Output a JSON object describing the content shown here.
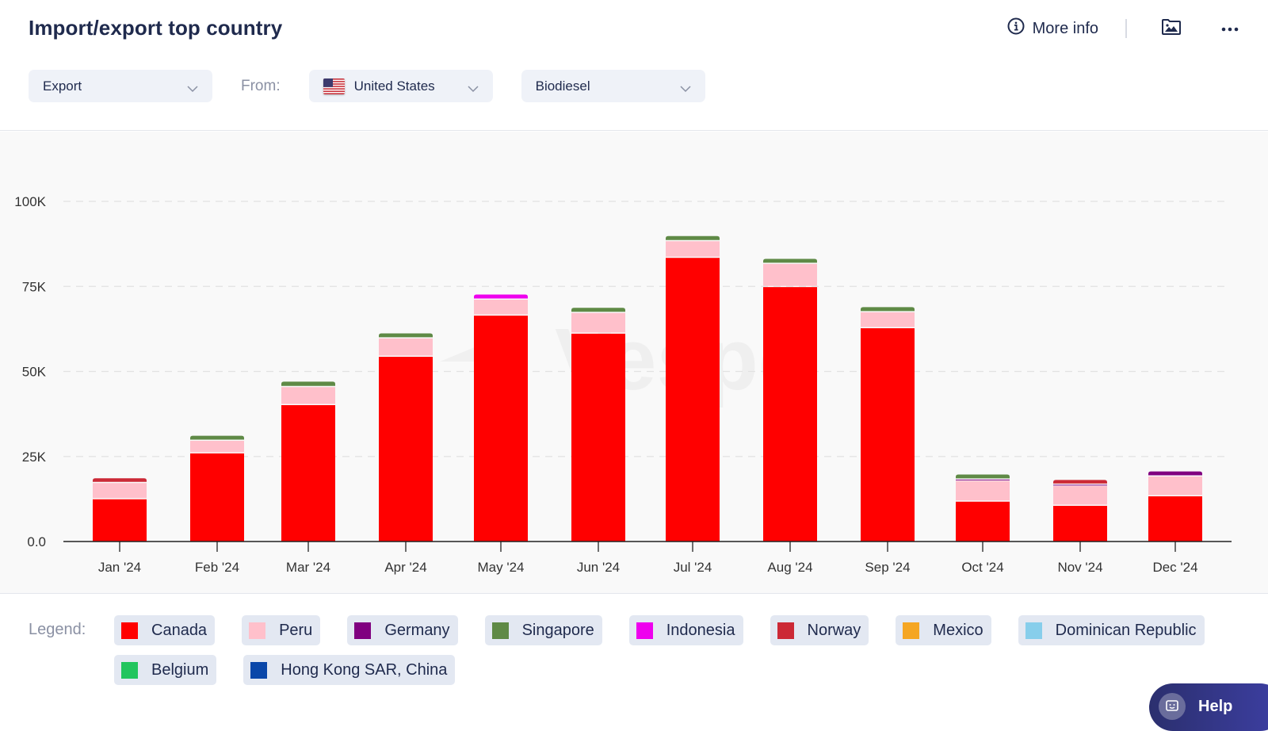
{
  "header": {
    "title": "Import/export top country",
    "more_info_label": "More info",
    "icons": {
      "info": "info-circle-icon",
      "image": "image-folder-icon",
      "more": "more-horizontal-icon"
    }
  },
  "filters": {
    "direction": "Export",
    "from_label": "From:",
    "country": "United States",
    "country_flag": "us-flag-icon",
    "product": "Biodiesel"
  },
  "legend": {
    "label": "Legend:",
    "items": [
      {
        "name": "Canada",
        "color": "#ff0000"
      },
      {
        "name": "Peru",
        "color": "#ffc0cb"
      },
      {
        "name": "Germany",
        "color": "#800080"
      },
      {
        "name": "Singapore",
        "color": "#5f8a46"
      },
      {
        "name": "Indonesia",
        "color": "#ee00ee"
      },
      {
        "name": "Norway",
        "color": "#cc2936"
      },
      {
        "name": "Mexico",
        "color": "#f5a623"
      },
      {
        "name": "Dominican Republic",
        "color": "#87ceeb"
      },
      {
        "name": "Belgium",
        "color": "#22c55e"
      },
      {
        "name": "Hong Kong SAR, China",
        "color": "#0a47a9"
      }
    ]
  },
  "help_label": "Help",
  "chart_data": {
    "type": "bar",
    "stacked": true,
    "title": "",
    "xlabel": "",
    "ylabel": "",
    "ylim": [
      0,
      100000
    ],
    "yticks": [
      0,
      25000,
      50000,
      75000,
      100000
    ],
    "ytick_labels": [
      "0.0",
      "25K",
      "50K",
      "75K",
      "100K"
    ],
    "grid": true,
    "legend_position": "bottom",
    "categories": [
      "Jan '24",
      "Feb '24",
      "Mar '24",
      "Apr '24",
      "May '24",
      "Jun '24",
      "Jul '24",
      "Aug '24",
      "Sep '24",
      "Oct '24",
      "Nov '24",
      "Dec '24"
    ],
    "series": [
      {
        "name": "Canada",
        "color": "#ff0000",
        "values": [
          12400,
          25900,
          40100,
          54300,
          66400,
          61100,
          83400,
          74800,
          62700,
          11700,
          10500,
          13300
        ]
      },
      {
        "name": "Peru",
        "color": "#ffc0cb",
        "values": [
          4800,
          3700,
          5300,
          5400,
          4700,
          6100,
          4900,
          6800,
          4700,
          6100,
          5800,
          5800
        ]
      },
      {
        "name": "Germany",
        "color": "#800080",
        "values": [
          0,
          0,
          0,
          0,
          0,
          0,
          0,
          0,
          0,
          400,
          400,
          1500
        ]
      },
      {
        "name": "Singapore",
        "color": "#5f8a46",
        "values": [
          0,
          1500,
          1600,
          1500,
          0,
          1500,
          1500,
          1500,
          1500,
          1500,
          0,
          0
        ]
      },
      {
        "name": "Indonesia",
        "color": "#ee00ee",
        "values": [
          0,
          0,
          0,
          0,
          1500,
          0,
          0,
          0,
          0,
          0,
          0,
          0
        ]
      },
      {
        "name": "Norway",
        "color": "#cc2936",
        "values": [
          1400,
          0,
          0,
          0,
          0,
          0,
          0,
          0,
          0,
          0,
          1400,
          0
        ]
      },
      {
        "name": "Mexico",
        "color": "#f5a623",
        "values": [
          0,
          0,
          0,
          0,
          0,
          0,
          0,
          0,
          0,
          0,
          0,
          0
        ]
      },
      {
        "name": "Dominican Republic",
        "color": "#87ceeb",
        "values": [
          0,
          0,
          0,
          0,
          0,
          0,
          0,
          0,
          0,
          0,
          0,
          0
        ]
      },
      {
        "name": "Belgium",
        "color": "#22c55e",
        "values": [
          0,
          0,
          0,
          0,
          0,
          0,
          0,
          0,
          0,
          0,
          0,
          0
        ]
      },
      {
        "name": "Hong Kong SAR, China",
        "color": "#0a47a9",
        "values": [
          0,
          0,
          0,
          0,
          0,
          0,
          0,
          0,
          0,
          0,
          0,
          0
        ]
      }
    ]
  }
}
